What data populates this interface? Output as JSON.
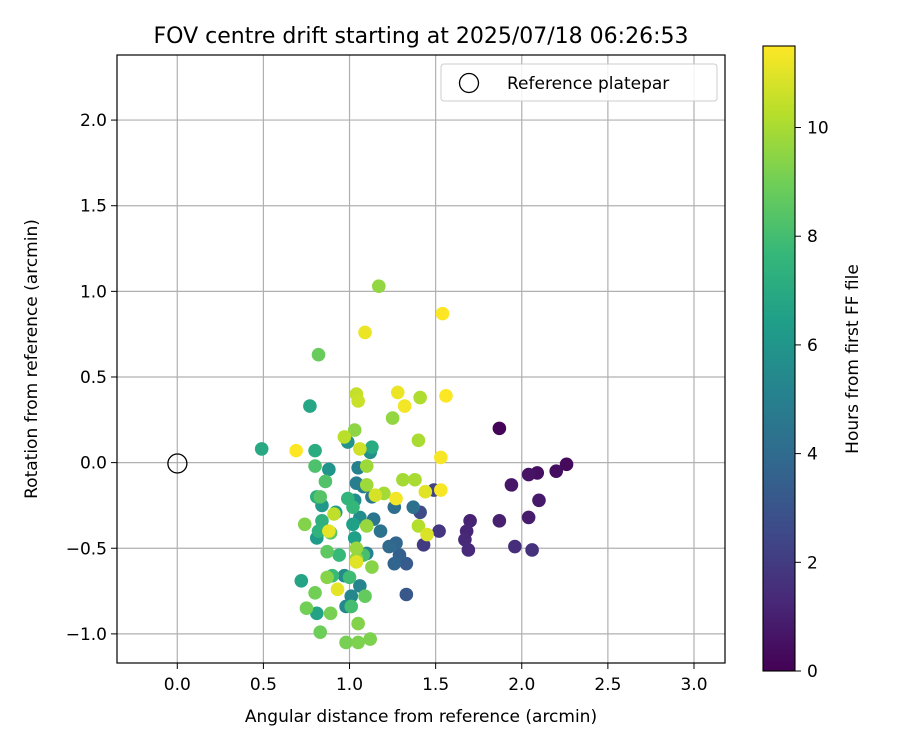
{
  "chart_data": {
    "type": "scatter",
    "title": "FOV centre drift starting at 2025/07/18 06:26:53",
    "xlabel": "Angular distance from reference (arcmin)",
    "ylabel": "Rotation from reference (arcmin)",
    "xlim": [
      -0.35,
      3.18
    ],
    "ylim": [
      -1.17,
      2.38
    ],
    "xticks": [
      "0.0",
      "0.5",
      "1.0",
      "1.5",
      "2.0",
      "2.5",
      "3.0"
    ],
    "xtick_values": [
      0.0,
      0.5,
      1.0,
      1.5,
      2.0,
      2.5,
      3.0
    ],
    "yticks": [
      "−1.0",
      "−0.5",
      "0.0",
      "0.5",
      "1.0",
      "1.5",
      "2.0"
    ],
    "ytick_values": [
      -1.0,
      -0.5,
      0.0,
      0.5,
      1.0,
      1.5,
      2.0
    ],
    "grid": true,
    "legend": {
      "position": "top-right",
      "entries": [
        "Reference platepar"
      ]
    },
    "reference_point": {
      "x": 0.0,
      "y": 0.0
    },
    "colorbar": {
      "label": "Hours from first FF file",
      "range": [
        0,
        11.5
      ],
      "ticks": [
        "0",
        "2",
        "4",
        "6",
        "8",
        "10"
      ],
      "tick_values": [
        0,
        2,
        4,
        6,
        8,
        10
      ],
      "colormap": [
        "#440154",
        "#482878",
        "#3e4a89",
        "#31688e",
        "#26828e",
        "#1f9e89",
        "#35b779",
        "#6ece58",
        "#b5de2b",
        "#fde725"
      ]
    },
    "points": [
      {
        "x": 1.87,
        "y": 0.2,
        "h": 0.1
      },
      {
        "x": 2.26,
        "y": -0.01,
        "h": 0.3
      },
      {
        "x": 2.2,
        "y": -0.05,
        "h": 0.4
      },
      {
        "x": 2.09,
        "y": -0.06,
        "h": 0.5
      },
      {
        "x": 2.04,
        "y": -0.07,
        "h": 0.6
      },
      {
        "x": 1.94,
        "y": -0.13,
        "h": 0.7
      },
      {
        "x": 2.1,
        "y": -0.22,
        "h": 0.8
      },
      {
        "x": 2.04,
        "y": -0.32,
        "h": 0.9
      },
      {
        "x": 1.87,
        "y": -0.34,
        "h": 1.0
      },
      {
        "x": 1.7,
        "y": -0.34,
        "h": 1.1
      },
      {
        "x": 1.68,
        "y": -0.4,
        "h": 1.2
      },
      {
        "x": 1.67,
        "y": -0.45,
        "h": 1.3
      },
      {
        "x": 1.69,
        "y": -0.51,
        "h": 1.4
      },
      {
        "x": 1.96,
        "y": -0.49,
        "h": 1.5
      },
      {
        "x": 2.06,
        "y": -0.51,
        "h": 1.6
      },
      {
        "x": 1.52,
        "y": -0.4,
        "h": 1.8
      },
      {
        "x": 1.43,
        "y": -0.48,
        "h": 2.0
      },
      {
        "x": 1.49,
        "y": -0.16,
        "h": 2.3
      },
      {
        "x": 1.41,
        "y": -0.29,
        "h": 2.6
      },
      {
        "x": 1.33,
        "y": -0.77,
        "h": 3.1
      },
      {
        "x": 1.33,
        "y": -0.59,
        "h": 3.3
      },
      {
        "x": 1.29,
        "y": -0.54,
        "h": 3.5
      },
      {
        "x": 1.26,
        "y": -0.59,
        "h": 3.7
      },
      {
        "x": 1.27,
        "y": -0.47,
        "h": 3.8
      },
      {
        "x": 1.23,
        "y": -0.49,
        "h": 4.0
      },
      {
        "x": 1.26,
        "y": -0.26,
        "h": 4.2
      },
      {
        "x": 1.37,
        "y": -0.26,
        "h": 4.3
      },
      {
        "x": 1.18,
        "y": -0.4,
        "h": 4.4
      },
      {
        "x": 1.14,
        "y": -0.33,
        "h": 4.5
      },
      {
        "x": 1.13,
        "y": -0.2,
        "h": 4.6
      },
      {
        "x": 1.08,
        "y": -0.14,
        "h": 4.8
      },
      {
        "x": 1.04,
        "y": -0.12,
        "h": 4.9
      },
      {
        "x": 1.05,
        "y": -0.03,
        "h": 5.0
      },
      {
        "x": 1.1,
        "y": -0.53,
        "h": 5.1
      },
      {
        "x": 1.06,
        "y": -0.72,
        "h": 5.2
      },
      {
        "x": 1.01,
        "y": -0.78,
        "h": 5.3
      },
      {
        "x": 0.98,
        "y": -0.84,
        "h": 5.4
      },
      {
        "x": 0.97,
        "y": -0.66,
        "h": 5.5
      },
      {
        "x": 1.06,
        "y": -0.32,
        "h": 5.6
      },
      {
        "x": 1.03,
        "y": -0.22,
        "h": 5.7
      },
      {
        "x": 1.12,
        "y": 0.06,
        "h": 5.8
      },
      {
        "x": 0.99,
        "y": 0.12,
        "h": 5.9
      },
      {
        "x": 0.88,
        "y": -0.04,
        "h": 6.0
      },
      {
        "x": 0.84,
        "y": -0.25,
        "h": 6.1
      },
      {
        "x": 0.85,
        "y": -0.39,
        "h": 6.2
      },
      {
        "x": 0.81,
        "y": -0.44,
        "h": 6.3
      },
      {
        "x": 0.92,
        "y": -0.29,
        "h": 6.4
      },
      {
        "x": 1.02,
        "y": -0.36,
        "h": 6.5
      },
      {
        "x": 1.03,
        "y": -0.44,
        "h": 6.5
      },
      {
        "x": 0.81,
        "y": -0.88,
        "h": 6.6
      },
      {
        "x": 0.72,
        "y": -0.69,
        "h": 6.7
      },
      {
        "x": 0.77,
        "y": 0.33,
        "h": 6.8
      },
      {
        "x": 0.49,
        "y": 0.08,
        "h": 6.9
      },
      {
        "x": 1.13,
        "y": 0.09,
        "h": 7.0
      },
      {
        "x": 0.8,
        "y": 0.07,
        "h": 7.1
      },
      {
        "x": 0.81,
        "y": -0.2,
        "h": 7.2
      },
      {
        "x": 0.84,
        "y": -0.34,
        "h": 7.3
      },
      {
        "x": 0.82,
        "y": -0.4,
        "h": 7.4
      },
      {
        "x": 0.99,
        "y": -0.21,
        "h": 7.5
      },
      {
        "x": 1.02,
        "y": -0.26,
        "h": 7.6
      },
      {
        "x": 0.94,
        "y": -0.54,
        "h": 7.7
      },
      {
        "x": 0.9,
        "y": -0.66,
        "h": 7.8
      },
      {
        "x": 1.0,
        "y": -0.67,
        "h": 7.9
      },
      {
        "x": 1.01,
        "y": -0.84,
        "h": 8.0
      },
      {
        "x": 1.08,
        "y": -0.54,
        "h": 8.1
      },
      {
        "x": 0.8,
        "y": -0.02,
        "h": 8.2
      },
      {
        "x": 0.86,
        "y": -0.11,
        "h": 8.3
      },
      {
        "x": 0.83,
        "y": -0.2,
        "h": 8.4
      },
      {
        "x": 0.89,
        "y": -0.41,
        "h": 8.5
      },
      {
        "x": 0.87,
        "y": -0.52,
        "h": 8.6
      },
      {
        "x": 1.09,
        "y": -0.78,
        "h": 8.7
      },
      {
        "x": 0.82,
        "y": 0.63,
        "h": 8.8
      },
      {
        "x": 0.83,
        "y": -0.99,
        "h": 8.9
      },
      {
        "x": 0.75,
        "y": -0.85,
        "h": 9.0
      },
      {
        "x": 0.8,
        "y": -0.76,
        "h": 9.0
      },
      {
        "x": 0.89,
        "y": -0.88,
        "h": 9.1
      },
      {
        "x": 0.98,
        "y": -1.05,
        "h": 9.1
      },
      {
        "x": 1.05,
        "y": -1.05,
        "h": 9.2
      },
      {
        "x": 1.12,
        "y": -1.03,
        "h": 9.2
      },
      {
        "x": 1.05,
        "y": -0.94,
        "h": 9.3
      },
      {
        "x": 0.74,
        "y": -0.36,
        "h": 9.3
      },
      {
        "x": 0.87,
        "y": -0.67,
        "h": 9.4
      },
      {
        "x": 1.13,
        "y": -0.61,
        "h": 9.4
      },
      {
        "x": 1.04,
        "y": -0.56,
        "h": 9.5
      },
      {
        "x": 1.03,
        "y": 0.19,
        "h": 9.5
      },
      {
        "x": 1.17,
        "y": 1.03,
        "h": 9.6
      },
      {
        "x": 1.25,
        "y": 0.26,
        "h": 9.6
      },
      {
        "x": 1.1,
        "y": -0.37,
        "h": 9.7
      },
      {
        "x": 1.04,
        "y": -0.5,
        "h": 9.7
      },
      {
        "x": 1.1,
        "y": -0.02,
        "h": 9.8
      },
      {
        "x": 1.1,
        "y": -0.13,
        "h": 9.8
      },
      {
        "x": 1.2,
        "y": -0.18,
        "h": 9.9
      },
      {
        "x": 1.31,
        "y": -0.1,
        "h": 9.9
      },
      {
        "x": 1.38,
        "y": -0.1,
        "h": 10.0
      },
      {
        "x": 1.4,
        "y": 0.13,
        "h": 10.0
      },
      {
        "x": 1.41,
        "y": 0.38,
        "h": 10.1
      },
      {
        "x": 1.4,
        "y": -0.37,
        "h": 10.2
      },
      {
        "x": 0.97,
        "y": 0.15,
        "h": 10.3
      },
      {
        "x": 0.91,
        "y": -0.3,
        "h": 10.4
      },
      {
        "x": 1.04,
        "y": 0.4,
        "h": 10.5
      },
      {
        "x": 1.05,
        "y": 0.36,
        "h": 10.6
      },
      {
        "x": 1.06,
        "y": 0.08,
        "h": 10.7
      },
      {
        "x": 1.15,
        "y": -0.19,
        "h": 10.8
      },
      {
        "x": 1.45,
        "y": -0.42,
        "h": 10.9
      },
      {
        "x": 1.44,
        "y": -0.17,
        "h": 11.0
      },
      {
        "x": 1.04,
        "y": -0.58,
        "h": 11.0
      },
      {
        "x": 0.93,
        "y": -0.74,
        "h": 11.1
      },
      {
        "x": 0.88,
        "y": -0.4,
        "h": 11.1
      },
      {
        "x": 1.09,
        "y": 0.76,
        "h": 11.2
      },
      {
        "x": 1.28,
        "y": 0.41,
        "h": 11.2
      },
      {
        "x": 1.32,
        "y": 0.33,
        "h": 11.3
      },
      {
        "x": 1.27,
        "y": -0.21,
        "h": 11.3
      },
      {
        "x": 1.53,
        "y": -0.16,
        "h": 11.4
      },
      {
        "x": 1.53,
        "y": 0.03,
        "h": 11.4
      },
      {
        "x": 1.56,
        "y": 0.39,
        "h": 11.5
      },
      {
        "x": 1.54,
        "y": 0.87,
        "h": 11.5
      },
      {
        "x": 0.69,
        "y": 0.07,
        "h": 11.5
      }
    ]
  }
}
